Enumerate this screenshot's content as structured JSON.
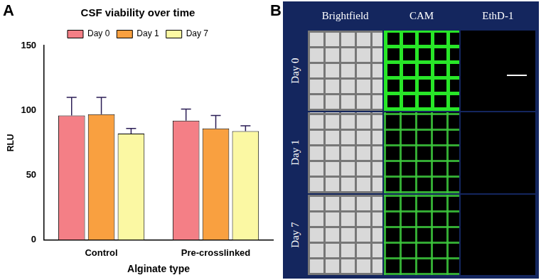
{
  "panel_labels": [
    "A",
    "B"
  ],
  "chart_data": {
    "type": "bar",
    "title": "CSF viability over time",
    "x_label": "Alginate type",
    "y_label": "RLU",
    "categories": [
      "Control",
      "Pre-crosslinked"
    ],
    "series": [
      {
        "name": "Day 0",
        "color": "#f47f86",
        "values": [
          96,
          92
        ],
        "errors": [
          14,
          9
        ]
      },
      {
        "name": "Day 1",
        "color": "#f9a040",
        "values": [
          97,
          86
        ],
        "errors": [
          13,
          10
        ]
      },
      {
        "name": "Day 7",
        "color": "#fbf8a3",
        "values": [
          82,
          84
        ],
        "errors": [
          4,
          4
        ]
      }
    ],
    "ylim": [
      0,
      150
    ],
    "yticks": [
      0,
      50,
      100,
      150
    ],
    "grid": false,
    "legend": "top"
  },
  "image_grid": {
    "columns": [
      "Brightfield",
      "CAM",
      "EthD-1"
    ],
    "rows": [
      "Day 0",
      "Day 1",
      "Day 7"
    ]
  }
}
